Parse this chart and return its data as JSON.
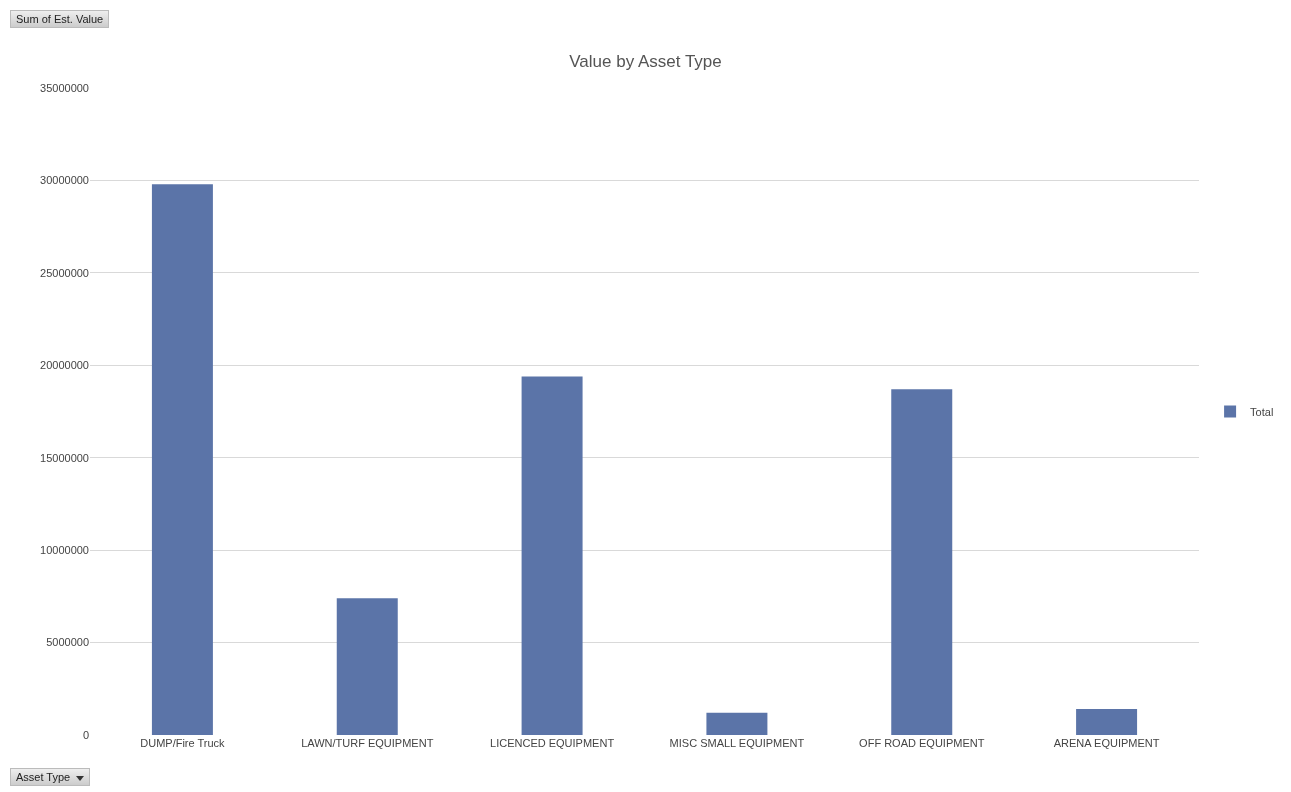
{
  "chart_data": {
    "type": "bar",
    "title": "Value by Asset Type",
    "categories": [
      "DUMP/Fire Truck",
      "LAWN/TURF EQUIPMENT",
      "LICENCED EQUIPMENT",
      "MISC SMALL EQUIPMENT",
      "OFF ROAD EQUIPMENT",
      "ARENA EQUIPMENT"
    ],
    "series": [
      {
        "name": "Total",
        "color": "#5b74a8",
        "values": [
          29800000,
          7400000,
          19400000,
          1200000,
          18700000,
          1400000
        ]
      }
    ],
    "ylim": [
      0,
      35000000
    ],
    "yticks": [
      0,
      5000000,
      10000000,
      15000000,
      20000000,
      25000000,
      30000000,
      35000000
    ],
    "grid": "y",
    "legend": "right",
    "annotations": [
      "Sum of Est. Value",
      "Asset Type"
    ]
  }
}
